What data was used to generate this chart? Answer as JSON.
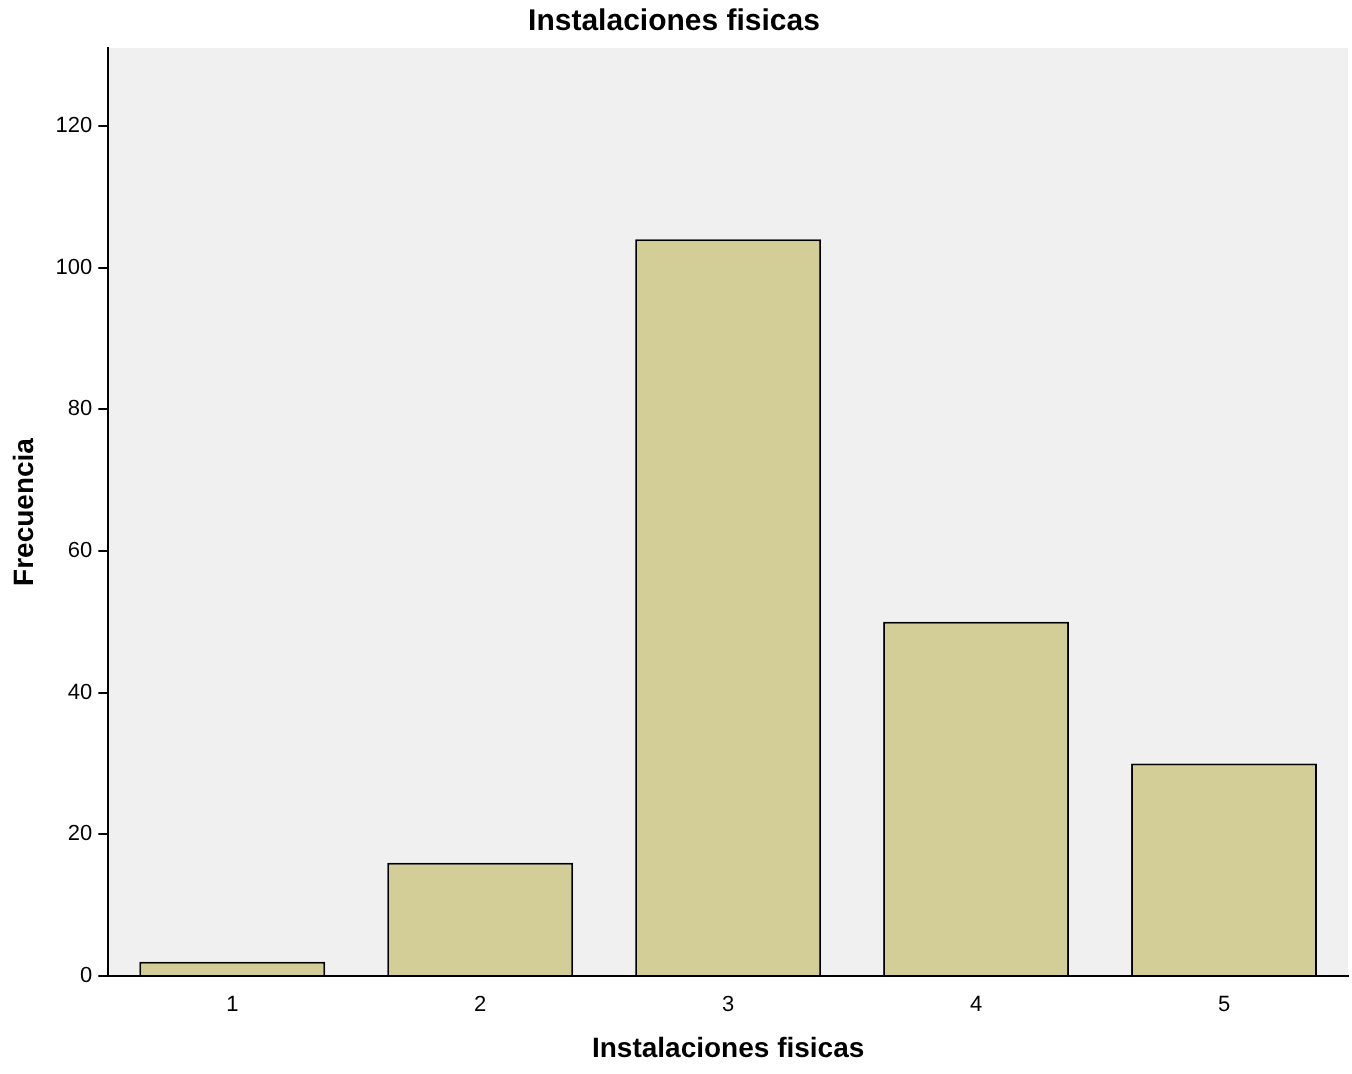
{
  "chart_data": {
    "type": "bar",
    "title": "Instalaciones fisicas",
    "xlabel": "Instalaciones fisicas",
    "ylabel": "Frecuencia",
    "categories": [
      "1",
      "2",
      "3",
      "4",
      "5"
    ],
    "values": [
      2,
      16,
      104,
      50,
      30
    ],
    "color": "#d3ce97",
    "ylim": [
      0,
      131
    ],
    "yticks": [
      0,
      20,
      40,
      60,
      80,
      100,
      120
    ],
    "grid": false,
    "legend": false
  }
}
